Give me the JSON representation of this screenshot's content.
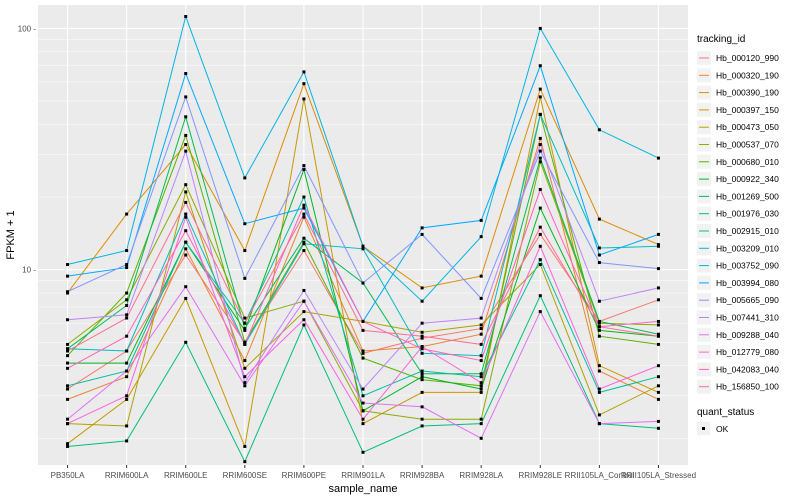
{
  "chart_data": {
    "type": "line",
    "xlabel": "sample_name",
    "ylabel": "FPKM + 1",
    "y_scale": "log10",
    "ylim": [
      1.55,
      125
    ],
    "y_ticks": [
      {
        "value": 10,
        "label": "10 -"
      },
      {
        "value": 100,
        "label": "100 -"
      }
    ],
    "categories": [
      "PB350LA",
      "RRIM600LA",
      "RRIM600LE",
      "RRIM600SE",
      "RRIM600PE",
      "RRIM901LA",
      "RRIM928BA",
      "RRIM928LA",
      "RRIM928LE",
      "RRII105LA_Control",
      "RRII105LA_Stressed"
    ],
    "legend_title": "tracking_id",
    "legend_quant_title": "quant_status",
    "legend_quant_label": "OK",
    "legend_position": "right",
    "grid": true,
    "background": "#ebebeb",
    "series": [
      {
        "name": "Hb_000120_990",
        "color": "#F8766D",
        "values": [
          3.2,
          4.6,
          11.5,
          5.0,
          12.0,
          4.5,
          5.2,
          5.7,
          14.0,
          6.1,
          7.5
        ]
      },
      {
        "name": "Hb_000320_190",
        "color": "#EB8335",
        "values": [
          2.9,
          3.6,
          12.2,
          4.2,
          16.5,
          4.6,
          4.8,
          5.4,
          35.0,
          3.8,
          2.9
        ]
      },
      {
        "name": "Hb_000390_190",
        "color": "#DE8C00",
        "values": [
          8.0,
          17.0,
          33.0,
          12.0,
          59.0,
          12.5,
          8.4,
          9.4,
          56.0,
          16.2,
          12.7
        ]
      },
      {
        "name": "Hb_000397_150",
        "color": "#C99800",
        "values": [
          1.9,
          2.9,
          7.6,
          1.85,
          51.0,
          2.3,
          3.1,
          3.1,
          52.0,
          4.0,
          3.1
        ]
      },
      {
        "name": "Hb_000473_050",
        "color": "#AFA100",
        "values": [
          2.3,
          2.25,
          21.0,
          3.9,
          6.7,
          6.1,
          5.5,
          5.9,
          10.5,
          2.5,
          3.3
        ]
      },
      {
        "name": "Hb_000537_070",
        "color": "#8CAB00",
        "values": [
          4.9,
          7.5,
          22.5,
          6.3,
          7.4,
          2.6,
          2.4,
          2.4,
          28.0,
          6.0,
          5.9
        ]
      },
      {
        "name": "Hb_000680_010",
        "color": "#5BB300",
        "values": [
          4.4,
          8.0,
          36.0,
          5.0,
          13.0,
          4.3,
          3.5,
          3.3,
          44.0,
          5.3,
          4.9
        ]
      },
      {
        "name": "Hb_000922_340",
        "color": "#00B81F",
        "values": [
          4.1,
          4.1,
          13.0,
          5.6,
          26.0,
          2.6,
          3.6,
          3.2,
          18.0,
          5.6,
          5.3
        ]
      },
      {
        "name": "Hb_001269_500",
        "color": "#00BC59",
        "values": [
          4.7,
          7.1,
          43.0,
          5.7,
          13.5,
          8.8,
          3.7,
          3.7,
          29.0,
          6.1,
          5.4
        ]
      },
      {
        "name": "Hb_001976_030",
        "color": "#00BF7D",
        "values": [
          1.85,
          1.95,
          5.0,
          1.6,
          5.9,
          1.75,
          2.25,
          2.3,
          7.8,
          2.3,
          2.2
        ]
      },
      {
        "name": "Hb_002915_010",
        "color": "#00C0A0",
        "values": [
          3.3,
          3.8,
          13.0,
          6.0,
          20.0,
          3.0,
          3.8,
          3.6,
          11.0,
          3.1,
          3.6
        ]
      },
      {
        "name": "Hb_003209_010",
        "color": "#00BDC2",
        "values": [
          4.7,
          4.6,
          17.0,
          4.9,
          12.8,
          12.2,
          4.5,
          4.4,
          44.0,
          12.3,
          12.5
        ]
      },
      {
        "name": "Hb_003752_090",
        "color": "#00B5E2",
        "values": [
          10.5,
          12.0,
          112.0,
          24.0,
          66.0,
          12.5,
          7.4,
          13.7,
          100.0,
          38.0,
          29.0
        ]
      },
      {
        "name": "Hb_003994_080",
        "color": "#00A8FF",
        "values": [
          9.4,
          10.2,
          65.0,
          15.5,
          18.0,
          6.1,
          14.9,
          16.0,
          70.0,
          11.5,
          14.0
        ]
      },
      {
        "name": "Hb_005665_090",
        "color": "#7F96FF",
        "values": [
          8.1,
          10.5,
          52.0,
          9.2,
          27.0,
          8.8,
          14.0,
          7.6,
          31.0,
          10.7,
          10.1
        ]
      },
      {
        "name": "Hb_007441_310",
        "color": "#BC83FF",
        "values": [
          6.2,
          6.5,
          31.0,
          3.4,
          8.2,
          3.2,
          6.0,
          6.3,
          33.0,
          7.4,
          8.4
        ]
      },
      {
        "name": "Hb_009288_040",
        "color": "#E36EF6",
        "values": [
          2.4,
          3.8,
          8.5,
          3.3,
          7.4,
          2.8,
          2.7,
          2.0,
          6.7,
          2.3,
          2.35
        ]
      },
      {
        "name": "Hb_012779_080",
        "color": "#F962DD",
        "values": [
          2.3,
          3.0,
          16.5,
          3.6,
          6.2,
          2.4,
          4.8,
          3.4,
          12.5,
          3.2,
          4.0
        ]
      },
      {
        "name": "Hb_042083_040",
        "color": "#FF62BC",
        "values": [
          3.9,
          5.3,
          14.5,
          4.9,
          18.5,
          6.1,
          4.7,
          4.2,
          21.5,
          5.8,
          6.1
        ]
      },
      {
        "name": "Hb_156850_100",
        "color": "#FF6C91",
        "values": [
          4.6,
          6.3,
          19.0,
          6.0,
          17.0,
          5.6,
          5.3,
          4.9,
          15.0,
          5.8,
          5.3
        ]
      }
    ]
  }
}
